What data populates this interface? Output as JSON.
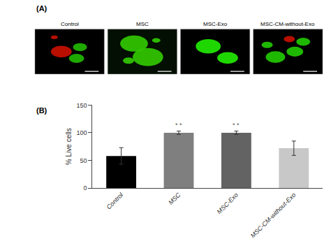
{
  "chart_data": [
    {
      "type": "image",
      "label": "(A)",
      "panels": [
        {
          "title": "Control",
          "background": "#000000",
          "blobs": [
            {
              "x": 0.38,
              "y": 0.5,
              "rx": 0.15,
              "ry": 0.13,
              "color": "#cc1100"
            },
            {
              "x": 0.6,
              "y": 0.35,
              "rx": 0.11,
              "ry": 0.1,
              "color": "#22bb00"
            },
            {
              "x": 0.65,
              "y": 0.6,
              "rx": 0.1,
              "ry": 0.09,
              "color": "#22bb00"
            },
            {
              "x": 0.28,
              "y": 0.82,
              "rx": 0.05,
              "ry": 0.04,
              "color": "#cc1100"
            }
          ]
        },
        {
          "title": "MSC",
          "background": "#020f02",
          "blobs": [
            {
              "x": 0.58,
              "y": 0.38,
              "rx": 0.22,
              "ry": 0.2,
              "color": "#33cc00"
            },
            {
              "x": 0.38,
              "y": 0.68,
              "rx": 0.2,
              "ry": 0.18,
              "color": "#33cc00"
            },
            {
              "x": 0.3,
              "y": 0.3,
              "rx": 0.08,
              "ry": 0.07,
              "color": "#33cc00"
            },
            {
              "x": 0.7,
              "y": 0.75,
              "rx": 0.06,
              "ry": 0.05,
              "color": "#33cc00"
            }
          ]
        },
        {
          "title": "MSC-Exo",
          "background": "#000000",
          "blobs": [
            {
              "x": 0.4,
              "y": 0.62,
              "rx": 0.18,
              "ry": 0.16,
              "color": "#22ee00"
            },
            {
              "x": 0.68,
              "y": 0.36,
              "rx": 0.15,
              "ry": 0.13,
              "color": "#22ee00"
            }
          ]
        },
        {
          "title": "MSC-CM-without-Exo",
          "background": "#000000",
          "blobs": [
            {
              "x": 0.32,
              "y": 0.38,
              "rx": 0.14,
              "ry": 0.13,
              "color": "#22cc00"
            },
            {
              "x": 0.6,
              "y": 0.5,
              "rx": 0.12,
              "ry": 0.11,
              "color": "#22cc00"
            },
            {
              "x": 0.72,
              "y": 0.72,
              "rx": 0.1,
              "ry": 0.09,
              "color": "#22cc00"
            },
            {
              "x": 0.2,
              "y": 0.65,
              "rx": 0.08,
              "ry": 0.07,
              "color": "#22cc00"
            },
            {
              "x": 0.52,
              "y": 0.78,
              "rx": 0.08,
              "ry": 0.07,
              "color": "#cc1100"
            }
          ]
        }
      ]
    },
    {
      "type": "bar",
      "label": "(B)",
      "categories": [
        "Control",
        "MSC",
        "MSC-Exo",
        "MSC-CM-without-Exo"
      ],
      "values": [
        58,
        100,
        100,
        72
      ],
      "errors": [
        15,
        3,
        3,
        13
      ],
      "colors": [
        "#000000",
        "#7f7f7f",
        "#636363",
        "#c8c8c8"
      ],
      "ylabel": "% Live cells",
      "ylim": [
        0,
        150
      ],
      "yticks": [
        0,
        50,
        100,
        150
      ],
      "grid": false,
      "annotations": [
        {
          "category": "MSC",
          "text": "* *"
        },
        {
          "category": "MSC-Exo",
          "text": "* *"
        }
      ]
    }
  ]
}
